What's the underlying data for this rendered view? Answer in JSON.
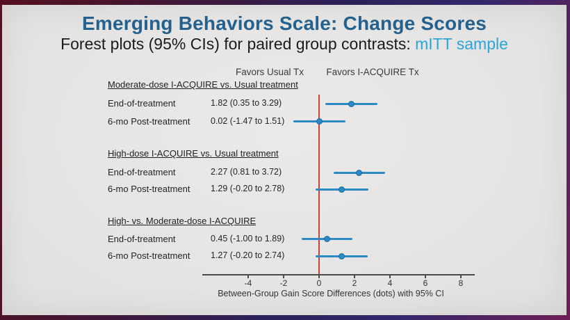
{
  "title": "Emerging Behaviors Scale: Change Scores",
  "subtitle": {
    "prefix": "Forest plots (95% CIs) for paired group contrasts: ",
    "highlight": "mITT sample"
  },
  "colors": {
    "title_blue": "#24618f",
    "highlight_blue": "#2aa5dd",
    "marker_blue": "#2b8ac6",
    "zero_line_red": "#c2453d",
    "slide_background": "#e8e7e5"
  },
  "chart_data": {
    "type": "forest",
    "title": "Emerging Behaviors Scale: Change Scores",
    "column_headers": {
      "left": "Favors Usual Tx",
      "right": "Favors I-ACQUIRE Tx"
    },
    "marker_color": "#2b8ac6",
    "axis": {
      "label": "Between-Group Gain Score Differences (dots) with 95% CI",
      "ticks": [
        -4,
        -2,
        0,
        2,
        4,
        6,
        8
      ],
      "min": -6.6,
      "max": 8.8,
      "zero_line_color": "#c2453d",
      "zero_line_value": 0
    },
    "groups": [
      {
        "heading": "Moderate-dose I-ACQUIRE vs. Usual treatment",
        "rows": [
          {
            "label": "End-of-treatment",
            "estimate_text": "1.82 (0.35 to 3.29)",
            "point": 1.82,
            "ci_low": 0.35,
            "ci_high": 3.29
          },
          {
            "label": "6-mo Post-treatment",
            "estimate_text": "0.02 (-1.47 to 1.51)",
            "point": 0.02,
            "ci_low": -1.47,
            "ci_high": 1.51
          }
        ]
      },
      {
        "heading": "High-dose I-ACQUIRE vs. Usual treatment",
        "rows": [
          {
            "label": "End-of-treatment",
            "estimate_text": "2.27 (0.81 to 3.72)",
            "point": 2.27,
            "ci_low": 0.81,
            "ci_high": 3.72
          },
          {
            "label": "6-mo Post-treatment",
            "estimate_text": "1.29 (-0.20 to 2.78)",
            "point": 1.29,
            "ci_low": -0.2,
            "ci_high": 2.78
          }
        ]
      },
      {
        "heading": "High- vs. Moderate-dose I-ACQUIRE",
        "rows": [
          {
            "label": "End-of-treatment",
            "estimate_text": "0.45 (-1.00 to 1.89)",
            "point": 0.45,
            "ci_low": -1.0,
            "ci_high": 1.89
          },
          {
            "label": "6-mo Post-treatment",
            "estimate_text": "1.27 (-0.20 to 2.74)",
            "point": 1.27,
            "ci_low": -0.2,
            "ci_high": 2.74
          }
        ]
      }
    ]
  }
}
